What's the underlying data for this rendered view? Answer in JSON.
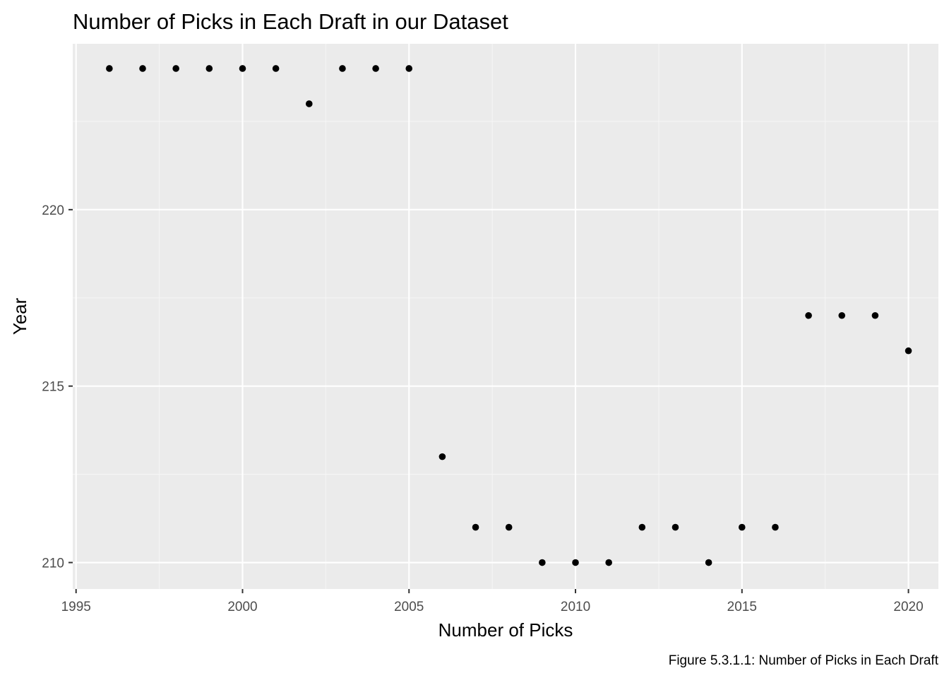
{
  "chart_data": {
    "type": "scatter",
    "title": "Number of Picks in Each Draft in our Dataset",
    "xlabel": "Number of Picks",
    "ylabel": "Year",
    "caption": "Figure 5.3.1.1: Number of Picks in Each Draft",
    "xlim": [
      1994.9,
      2020.9
    ],
    "ylim": [
      209.25,
      224.7
    ],
    "x_ticks": [
      1995,
      2000,
      2005,
      2010,
      2015,
      2020
    ],
    "y_ticks": [
      210,
      215,
      220
    ],
    "x_tick_labels": [
      "1995",
      "2000",
      "2005",
      "2010",
      "2015",
      "2020"
    ],
    "y_tick_labels": [
      "210",
      "215",
      "220"
    ],
    "grid": true,
    "legend": "none",
    "points": [
      {
        "x": 1996,
        "y": 224
      },
      {
        "x": 1997,
        "y": 224
      },
      {
        "x": 1998,
        "y": 224
      },
      {
        "x": 1999,
        "y": 224
      },
      {
        "x": 2000,
        "y": 224
      },
      {
        "x": 2001,
        "y": 224
      },
      {
        "x": 2002,
        "y": 223
      },
      {
        "x": 2003,
        "y": 224
      },
      {
        "x": 2004,
        "y": 224
      },
      {
        "x": 2005,
        "y": 224
      },
      {
        "x": 2006,
        "y": 213
      },
      {
        "x": 2007,
        "y": 211
      },
      {
        "x": 2008,
        "y": 211
      },
      {
        "x": 2009,
        "y": 210
      },
      {
        "x": 2010,
        "y": 210
      },
      {
        "x": 2011,
        "y": 210
      },
      {
        "x": 2012,
        "y": 211
      },
      {
        "x": 2013,
        "y": 211
      },
      {
        "x": 2014,
        "y": 210
      },
      {
        "x": 2015,
        "y": 211
      },
      {
        "x": 2016,
        "y": 211
      },
      {
        "x": 2017,
        "y": 217
      },
      {
        "x": 2018,
        "y": 217
      },
      {
        "x": 2019,
        "y": 217
      },
      {
        "x": 2020,
        "y": 216
      }
    ],
    "colors": {
      "panel_background": "#ebebeb",
      "grid_major": "#ffffff",
      "grid_minor": "#f5f5f5",
      "point": "#000000",
      "tick_label": "#4d4d4d"
    }
  }
}
